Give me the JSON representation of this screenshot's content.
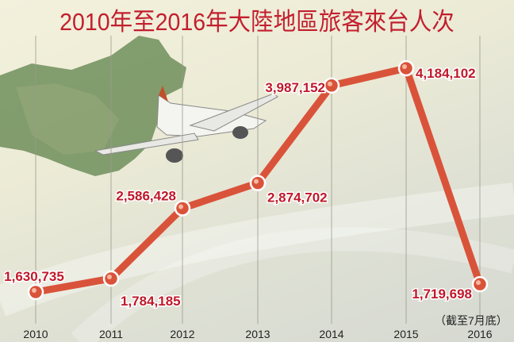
{
  "title": "2010年至2016年大陸地區旅客來台人次",
  "note": "（截至7月底）",
  "colors": {
    "line": "#d9533a",
    "marker": "#d9533a",
    "label": "#c0182a",
    "title": "#c21f2e"
  },
  "chart_data": {
    "type": "line",
    "title": "2010年至2016年大陸地區旅客來台人次",
    "categories": [
      "2010",
      "2011",
      "2012",
      "2013",
      "2014",
      "2015",
      "2016"
    ],
    "values": [
      1630735,
      1784185,
      2586428,
      2874702,
      3987152,
      4184102,
      1719698
    ],
    "data_labels": [
      "1,630,735",
      "1,784,185",
      "2,586,428",
      "2,874,702",
      "3,987,152",
      "4,184,102",
      "1,719,698"
    ],
    "annotation": "（截至7月底）",
    "grid": "vertical lines at each year",
    "legend": "none"
  }
}
